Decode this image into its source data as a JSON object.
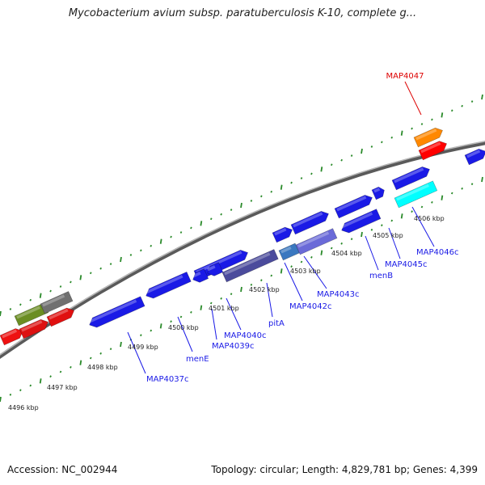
{
  "title": "Mycobacterium avium subsp. paratuberculosis K-10, complete g...",
  "footer": {
    "accession": "Accession: NC_002944",
    "summary": "Topology: circular; Length: 4,829,781 bp; Genes: 4,399"
  },
  "colors": {
    "forward_cds": "#1a1ae6",
    "reverse_cds": "#1a1ae6",
    "highlight_gene": "#ff0000",
    "gene_label": "#1a1ae6",
    "tick": "#2a8a2a",
    "backbone": "#8a8a8a"
  },
  "kbp_ticks": [
    "4496 kbp",
    "4497 kbp",
    "4498 kbp",
    "4499 kbp",
    "4500 kbp",
    "4501 kbp",
    "4502 kbp",
    "4503 kbp",
    "4504 kbp",
    "4505 kbp",
    "4506 kbp"
  ],
  "highlight_label": "MAP4047",
  "gene_labels": [
    "MAP4037c",
    "menE",
    "MAP4039c",
    "MAP4040c",
    "pitA",
    "MAP4042c",
    "MAP4043c",
    "menB",
    "MAP4045c",
    "MAP4046c"
  ]
}
